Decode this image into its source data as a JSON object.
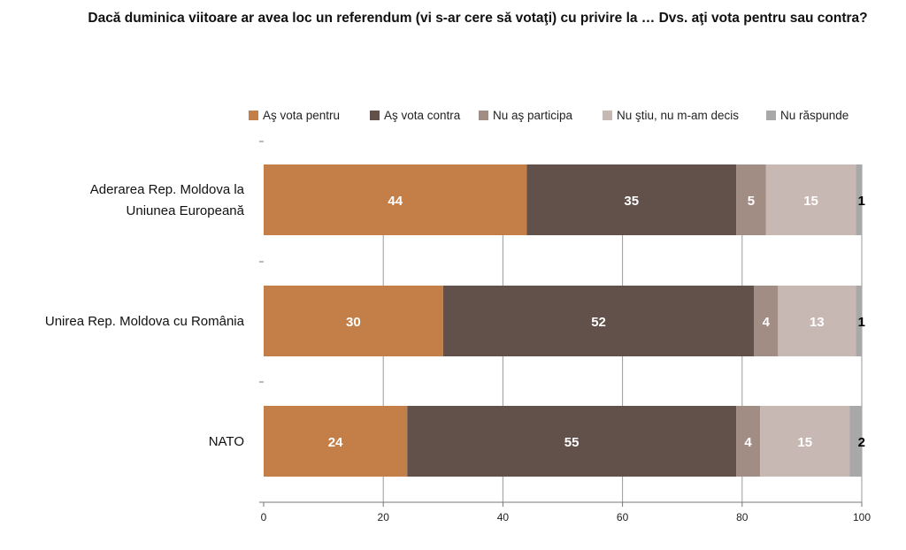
{
  "chart_data": {
    "type": "bar",
    "orientation": "horizontal",
    "stacked": true,
    "title": "Dacă duminica viitoare ar avea loc un referendum (vi s-ar cere să votaţi) cu privire la … Dvs. aţi vota pentru sau contra?",
    "categories": [
      "Aderarea Rep. Moldova la Uniunea Europeană",
      "Unirea Rep. Moldova cu România",
      "NATO"
    ],
    "category_lines": [
      [
        "Aderarea Rep. Moldova la",
        "Uniunea Europeană"
      ],
      [
        "Unirea Rep. Moldova cu România"
      ],
      [
        "NATO"
      ]
    ],
    "series": [
      {
        "name": "Aş vota pentru",
        "color": "#C47F48",
        "label_color": "#ffffff",
        "values": [
          44,
          30,
          24
        ]
      },
      {
        "name": "Aş vota contra",
        "color": "#62514A",
        "label_color": "#ffffff",
        "values": [
          35,
          52,
          55
        ]
      },
      {
        "name": "Nu aş participa",
        "color": "#A28D84",
        "label_color": "#ffffff",
        "values": [
          5,
          4,
          4
        ]
      },
      {
        "name": "Nu ştiu, nu m-am decis",
        "color": "#C8B8B3",
        "label_color": "#ffffff",
        "values": [
          15,
          13,
          15
        ]
      },
      {
        "name": "Nu răspunde",
        "color": "#A8A8A8",
        "label_color": "#000000",
        "values": [
          1,
          1,
          2
        ]
      }
    ],
    "xlim": [
      0,
      100
    ],
    "xticks": [
      "0",
      "20",
      "40",
      "60",
      "80",
      "100"
    ],
    "grid": true,
    "legend_position": "top",
    "xlabel": "",
    "ylabel": ""
  }
}
